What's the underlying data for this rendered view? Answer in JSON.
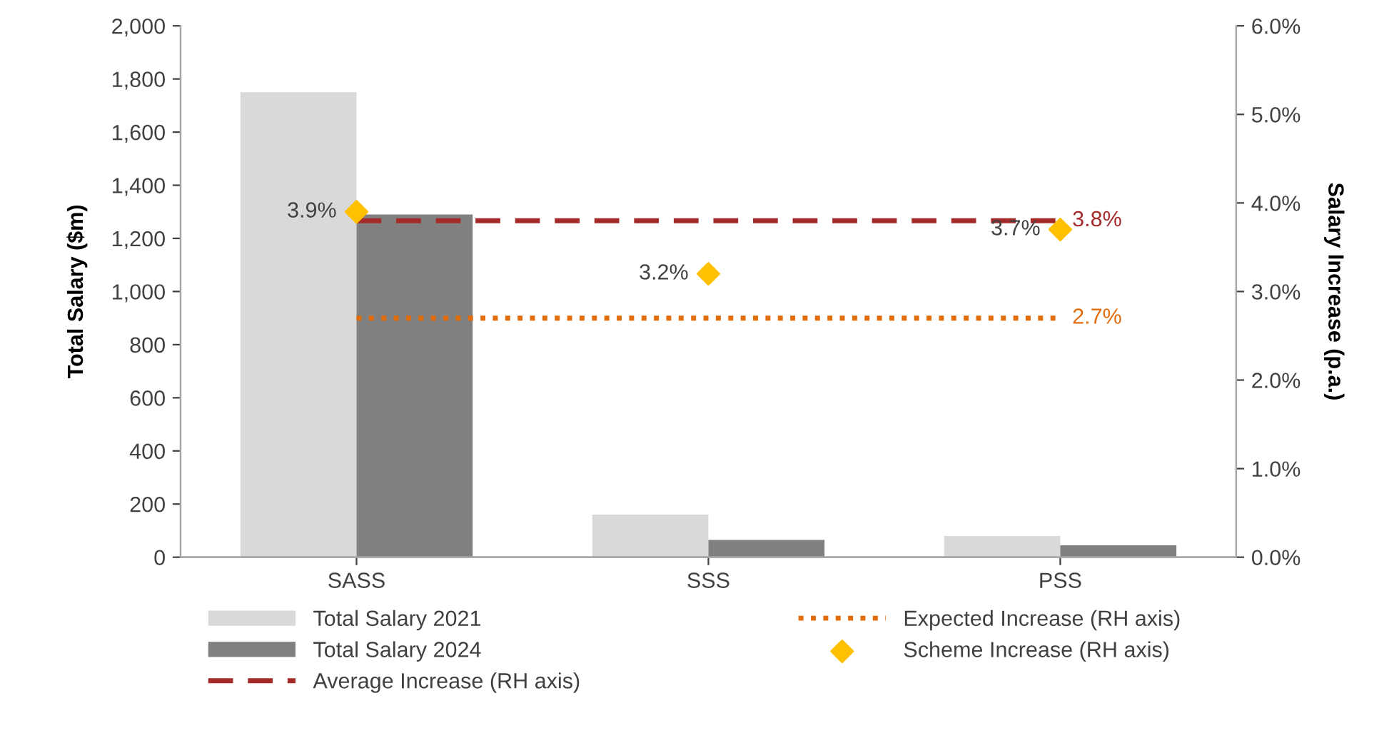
{
  "chart_data": {
    "type": "bar",
    "ylabel": "Total Salary ($m)",
    "y2label": "Salary Increase (p.a.)",
    "categories": [
      "SASS",
      "SSS",
      "PSS"
    ],
    "series": [
      {
        "name": "Total Salary 2021",
        "color": "#d9d9d9",
        "values": [
          1750,
          160,
          80
        ]
      },
      {
        "name": "Total Salary 2024",
        "color": "#808080",
        "values": [
          1290,
          65,
          45
        ]
      },
      {
        "name": "Average Increase (RH axis)",
        "type": "line",
        "axis": "y2",
        "color": "#a52a2a",
        "line_style": "dashed",
        "marker": "none",
        "values": [
          3.8,
          3.8,
          3.8
        ],
        "value_labels": [
          null,
          null,
          "3.8%"
        ]
      },
      {
        "name": "Expected Increase (RH axis)",
        "type": "line",
        "axis": "y2",
        "color": "#e36c0a",
        "line_style": "dotted",
        "marker": "none",
        "values": [
          2.7,
          2.7,
          2.7
        ],
        "value_labels": [
          null,
          null,
          "2.7%"
        ]
      },
      {
        "name": "Scheme Increase (RH axis)",
        "type": "scatter",
        "axis": "y2",
        "color": "#ffc000",
        "marker": "diamond",
        "values": [
          3.9,
          3.2,
          3.7
        ],
        "value_labels": [
          "3.9%",
          "3.2%",
          "3.7%"
        ]
      }
    ],
    "ylim": [
      0,
      2000
    ],
    "yticks": [
      {
        "value": 0,
        "label": "0"
      },
      {
        "value": 200,
        "label": "200"
      },
      {
        "value": 400,
        "label": "400"
      },
      {
        "value": 600,
        "label": "600"
      },
      {
        "value": 800,
        "label": "800"
      },
      {
        "value": 1000,
        "label": "1,000"
      },
      {
        "value": 1200,
        "label": "1,200"
      },
      {
        "value": 1400,
        "label": "1,400"
      },
      {
        "value": 1600,
        "label": "1,600"
      },
      {
        "value": 1800,
        "label": "1,800"
      },
      {
        "value": 2000,
        "label": "2,000"
      }
    ],
    "y2lim": [
      0,
      6
    ],
    "y2ticks": [
      {
        "value": 0,
        "label": "0.0%"
      },
      {
        "value": 1,
        "label": "1.0%"
      },
      {
        "value": 2,
        "label": "2.0%"
      },
      {
        "value": 3,
        "label": "3.0%"
      },
      {
        "value": 4,
        "label": "4.0%"
      },
      {
        "value": 5,
        "label": "5.0%"
      },
      {
        "value": 6,
        "label": "6.0%"
      }
    ],
    "grid": false,
    "legend": "bottom"
  }
}
